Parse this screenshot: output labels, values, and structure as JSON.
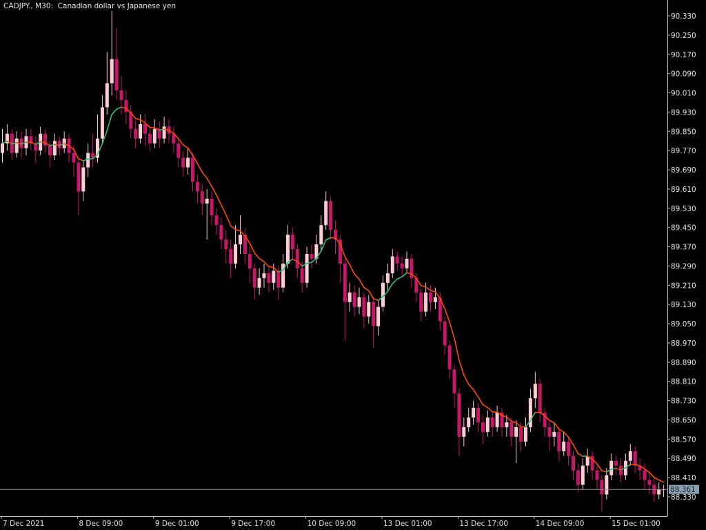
{
  "chart_data": {
    "type": "candlestick",
    "title": "CADJPY., M30:  Canadian dollar vs Japanese yen",
    "symbol": "CADJPY.",
    "timeframe": "M30",
    "description": "Canadian dollar vs Japanese yen",
    "ylim": [
      88.27,
      90.36
    ],
    "y_ticks": [
      "90.330",
      "90.250",
      "90.170",
      "90.090",
      "90.010",
      "89.930",
      "89.850",
      "89.770",
      "89.690",
      "89.610",
      "89.530",
      "89.450",
      "89.370",
      "89.290",
      "89.210",
      "89.130",
      "89.050",
      "88.970",
      "88.890",
      "88.810",
      "88.730",
      "88.650",
      "88.570",
      "88.490",
      "88.410",
      "88.330"
    ],
    "x_labels": [
      "7 Dec 2021",
      "8 Dec 09:00",
      "9 Dec 01:00",
      "9 Dec 17:00",
      "10 Dec 09:00",
      "13 Dec 01:00",
      "13 Dec 17:00",
      "14 Dec 09:00",
      "15 Dec 01:00"
    ],
    "current_price": "88.361",
    "grid": false,
    "colors": {
      "background": "#000000",
      "bull": "#ffccd5",
      "bear": "#c8176a",
      "ma_up": "#2fbf7f",
      "ma_down": "#ff4a00",
      "axis": "#c0c0c0",
      "price_label_bg": "#8aa0b4",
      "price_line": "#8c8c8c"
    },
    "ohlc": [
      [
        89.76,
        89.86,
        89.72,
        89.8
      ],
      [
        89.8,
        89.88,
        89.77,
        89.84
      ],
      [
        89.84,
        89.86,
        89.73,
        89.76
      ],
      [
        89.76,
        89.85,
        89.74,
        89.82
      ],
      [
        89.82,
        89.85,
        89.74,
        89.78
      ],
      [
        89.78,
        89.86,
        89.75,
        89.83
      ],
      [
        89.83,
        89.86,
        89.77,
        89.8
      ],
      [
        89.8,
        89.83,
        89.72,
        89.77
      ],
      [
        89.77,
        89.87,
        89.75,
        89.84
      ],
      [
        89.84,
        89.86,
        89.76,
        89.79
      ],
      [
        89.79,
        89.81,
        89.7,
        89.75
      ],
      [
        89.75,
        89.84,
        89.73,
        89.81
      ],
      [
        89.81,
        89.83,
        89.75,
        89.78
      ],
      [
        89.78,
        89.85,
        89.76,
        89.82
      ],
      [
        89.82,
        89.84,
        89.72,
        89.76
      ],
      [
        89.76,
        89.79,
        89.66,
        89.72
      ],
      [
        89.72,
        89.74,
        89.5,
        89.6
      ],
      [
        89.6,
        89.73,
        89.56,
        89.7
      ],
      [
        89.7,
        89.8,
        89.66,
        89.76
      ],
      [
        89.76,
        89.84,
        89.7,
        89.74
      ],
      [
        89.74,
        89.92,
        89.72,
        89.82
      ],
      [
        89.82,
        90.0,
        89.8,
        89.95
      ],
      [
        89.95,
        90.18,
        89.92,
        90.05
      ],
      [
        90.05,
        90.35,
        90.0,
        90.15
      ],
      [
        90.15,
        90.28,
        89.98,
        90.02
      ],
      [
        90.02,
        90.08,
        89.92,
        89.98
      ],
      [
        89.98,
        90.02,
        89.88,
        89.93
      ],
      [
        89.93,
        89.96,
        89.82,
        89.86
      ],
      [
        89.86,
        89.9,
        89.78,
        89.82
      ],
      [
        89.82,
        89.92,
        89.8,
        89.88
      ],
      [
        89.88,
        89.92,
        89.79,
        89.84
      ],
      [
        89.84,
        89.87,
        89.77,
        89.8
      ],
      [
        89.8,
        89.9,
        89.78,
        89.86
      ],
      [
        89.86,
        89.89,
        89.78,
        89.82
      ],
      [
        89.82,
        89.91,
        89.8,
        89.87
      ],
      [
        89.87,
        89.9,
        89.8,
        89.84
      ],
      [
        89.84,
        89.87,
        89.76,
        89.8
      ],
      [
        89.8,
        89.82,
        89.7,
        89.74
      ],
      [
        89.74,
        89.77,
        89.66,
        89.7
      ],
      [
        89.7,
        89.78,
        89.67,
        89.74
      ],
      [
        89.74,
        89.76,
        89.6,
        89.64
      ],
      [
        89.64,
        89.67,
        89.55,
        89.6
      ],
      [
        89.6,
        89.63,
        89.5,
        89.55
      ],
      [
        89.55,
        89.61,
        89.4,
        89.57
      ],
      [
        89.57,
        89.6,
        89.46,
        89.5
      ],
      [
        89.5,
        89.53,
        89.42,
        89.46
      ],
      [
        89.46,
        89.49,
        89.36,
        89.4
      ],
      [
        89.4,
        89.44,
        89.3,
        89.36
      ],
      [
        89.36,
        89.4,
        89.24,
        89.3
      ],
      [
        89.3,
        89.46,
        89.28,
        89.38
      ],
      [
        89.38,
        89.5,
        89.34,
        89.42
      ],
      [
        89.42,
        89.45,
        89.3,
        89.34
      ],
      [
        89.34,
        89.37,
        89.22,
        89.28
      ],
      [
        89.28,
        89.3,
        89.15,
        89.2
      ],
      [
        89.2,
        89.28,
        89.17,
        89.24
      ],
      [
        89.24,
        89.3,
        89.2,
        89.26
      ],
      [
        89.26,
        89.29,
        89.18,
        89.22
      ],
      [
        89.22,
        89.3,
        89.19,
        89.27
      ],
      [
        89.27,
        89.29,
        89.15,
        89.2
      ],
      [
        89.2,
        89.34,
        89.18,
        89.3
      ],
      [
        89.3,
        89.46,
        89.28,
        89.42
      ],
      [
        89.42,
        89.45,
        89.32,
        89.36
      ],
      [
        89.36,
        89.38,
        89.24,
        89.28
      ],
      [
        89.28,
        89.31,
        89.18,
        89.22
      ],
      [
        89.22,
        89.37,
        89.2,
        89.34
      ],
      [
        89.34,
        89.38,
        89.28,
        89.32
      ],
      [
        89.32,
        89.42,
        89.3,
        89.38
      ],
      [
        89.38,
        89.5,
        89.35,
        89.46
      ],
      [
        89.46,
        89.6,
        89.44,
        89.56
      ],
      [
        89.56,
        89.58,
        89.4,
        89.44
      ],
      [
        89.44,
        89.48,
        89.34,
        89.4
      ],
      [
        89.4,
        89.42,
        89.22,
        89.3
      ],
      [
        89.3,
        89.32,
        88.98,
        89.14
      ],
      [
        89.14,
        89.22,
        89.1,
        89.18
      ],
      [
        89.18,
        89.21,
        89.08,
        89.12
      ],
      [
        89.12,
        89.2,
        89.09,
        89.16
      ],
      [
        89.16,
        89.18,
        89.03,
        89.08
      ],
      [
        89.08,
        89.17,
        89.05,
        89.14
      ],
      [
        89.14,
        89.16,
        88.95,
        89.04
      ],
      [
        89.04,
        89.15,
        89.0,
        89.12
      ],
      [
        89.12,
        89.25,
        89.1,
        89.22
      ],
      [
        89.22,
        89.3,
        89.19,
        89.26
      ],
      [
        89.26,
        89.36,
        89.24,
        89.33
      ],
      [
        89.33,
        89.35,
        89.27,
        89.3
      ],
      [
        89.3,
        89.33,
        89.25,
        89.28
      ],
      [
        89.28,
        89.35,
        89.26,
        89.32
      ],
      [
        89.32,
        89.34,
        89.2,
        89.24
      ],
      [
        89.24,
        89.26,
        89.14,
        89.18
      ],
      [
        89.18,
        89.2,
        89.06,
        89.1
      ],
      [
        89.1,
        89.22,
        89.08,
        89.18
      ],
      [
        89.18,
        89.21,
        89.1,
        89.14
      ],
      [
        89.14,
        89.2,
        89.11,
        89.16
      ],
      [
        89.16,
        89.18,
        89.02,
        89.06
      ],
      [
        89.06,
        89.08,
        88.92,
        88.96
      ],
      [
        88.96,
        88.98,
        88.82,
        88.86
      ],
      [
        88.86,
        88.88,
        88.7,
        88.76
      ],
      [
        88.76,
        88.78,
        88.5,
        88.58
      ],
      [
        88.58,
        88.66,
        88.54,
        88.62
      ],
      [
        88.62,
        88.7,
        88.6,
        88.66
      ],
      [
        88.66,
        88.73,
        88.63,
        88.7
      ],
      [
        88.7,
        88.72,
        88.6,
        88.64
      ],
      [
        88.64,
        88.67,
        88.55,
        88.6
      ],
      [
        88.6,
        88.69,
        88.58,
        88.66
      ],
      [
        88.66,
        88.68,
        88.58,
        88.62
      ],
      [
        88.62,
        88.71,
        88.6,
        88.68
      ],
      [
        88.68,
        88.7,
        88.58,
        88.62
      ],
      [
        88.62,
        88.67,
        88.58,
        88.64
      ],
      [
        88.64,
        88.66,
        88.54,
        88.58
      ],
      [
        88.58,
        88.65,
        88.47,
        88.62
      ],
      [
        88.62,
        88.64,
        88.52,
        88.56
      ],
      [
        88.56,
        88.66,
        88.54,
        88.62
      ],
      [
        88.62,
        88.78,
        88.6,
        88.74
      ],
      [
        88.74,
        88.85,
        88.7,
        88.8
      ],
      [
        88.8,
        88.82,
        88.64,
        88.68
      ],
      [
        88.68,
        88.7,
        88.58,
        88.62
      ],
      [
        88.62,
        88.65,
        88.52,
        88.58
      ],
      [
        88.58,
        88.64,
        88.54,
        88.6
      ],
      [
        88.6,
        88.62,
        88.48,
        88.52
      ],
      [
        88.52,
        88.6,
        88.5,
        88.56
      ],
      [
        88.56,
        88.58,
        88.46,
        88.5
      ],
      [
        88.5,
        88.52,
        88.4,
        88.44
      ],
      [
        88.44,
        88.47,
        88.35,
        88.38
      ],
      [
        88.38,
        88.49,
        88.36,
        88.46
      ],
      [
        88.46,
        88.53,
        88.43,
        88.5
      ],
      [
        88.5,
        88.52,
        88.4,
        88.44
      ],
      [
        88.44,
        88.46,
        88.36,
        88.4
      ],
      [
        88.4,
        88.42,
        88.27,
        88.34
      ],
      [
        88.34,
        88.45,
        88.32,
        88.42
      ],
      [
        88.42,
        88.51,
        88.4,
        88.48
      ],
      [
        88.48,
        88.5,
        88.42,
        88.46
      ],
      [
        88.46,
        88.49,
        88.39,
        88.42
      ],
      [
        88.42,
        88.51,
        88.4,
        88.48
      ],
      [
        88.48,
        88.55,
        88.46,
        88.52
      ],
      [
        88.52,
        88.54,
        88.43,
        88.46
      ],
      [
        88.46,
        88.49,
        88.4,
        88.44
      ],
      [
        88.44,
        88.47,
        88.36,
        88.4
      ],
      [
        88.4,
        88.43,
        88.34,
        88.38
      ],
      [
        88.38,
        88.41,
        88.31,
        88.34
      ],
      [
        88.34,
        88.39,
        88.32,
        88.36
      ],
      [
        88.36,
        88.38,
        88.33,
        88.361
      ]
    ]
  }
}
